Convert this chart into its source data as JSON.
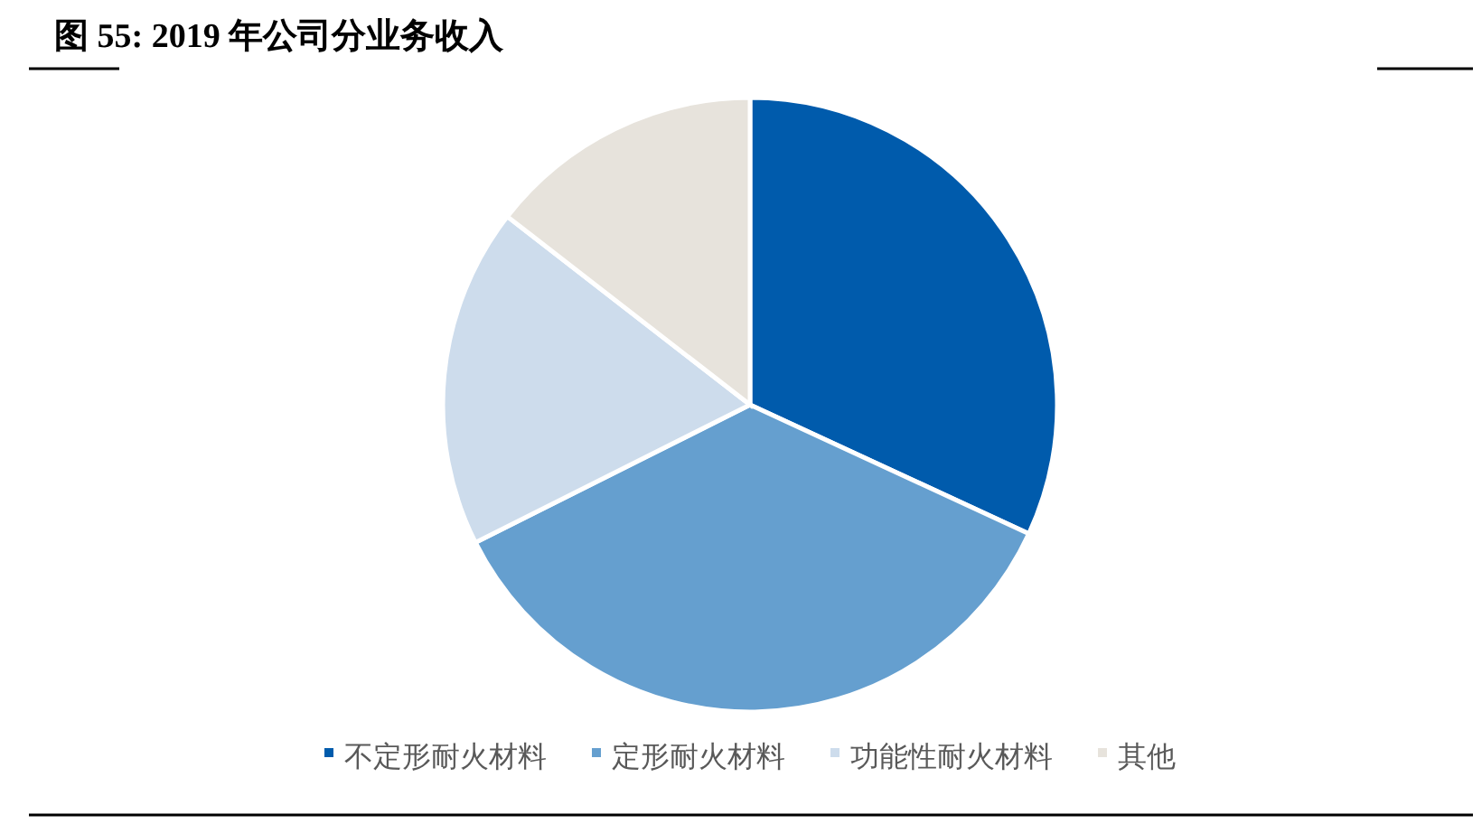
{
  "chart_data": {
    "type": "pie",
    "title": "图 55: 2019 年公司分业务收入",
    "categories": [
      "不定形耐火材料",
      "定形耐火材料",
      "功能性耐火材料",
      "其他"
    ],
    "values": [
      31.9,
      35.7,
      17.9,
      14.5
    ],
    "colors": [
      "#005bac",
      "#659fcf",
      "#cddcec",
      "#e7e3dc"
    ],
    "legend": "bottom"
  }
}
